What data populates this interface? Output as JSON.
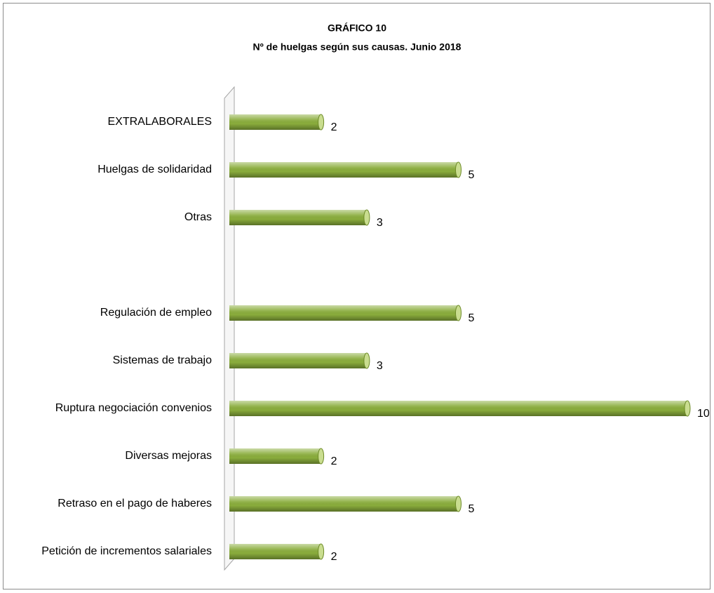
{
  "chart_data": {
    "type": "bar",
    "orientation": "horizontal",
    "title": "GRÁFICO 10",
    "subtitle": "Nº de huelgas según sus causas. Junio 2018",
    "categories": [
      "EXTRALABORALES",
      "Huelgas de solidaridad",
      "Otras",
      null,
      "Regulación de empleo",
      "Sistemas de trabajo",
      "Ruptura negociación convenios",
      "Diversas mejoras",
      "Retraso en el pago de haberes",
      "Petición de incrementos salariales"
    ],
    "values": [
      2,
      5,
      3,
      null,
      5,
      3,
      10,
      2,
      5,
      2
    ],
    "color": "#8aad3c",
    "xlim": [
      0,
      10
    ]
  }
}
